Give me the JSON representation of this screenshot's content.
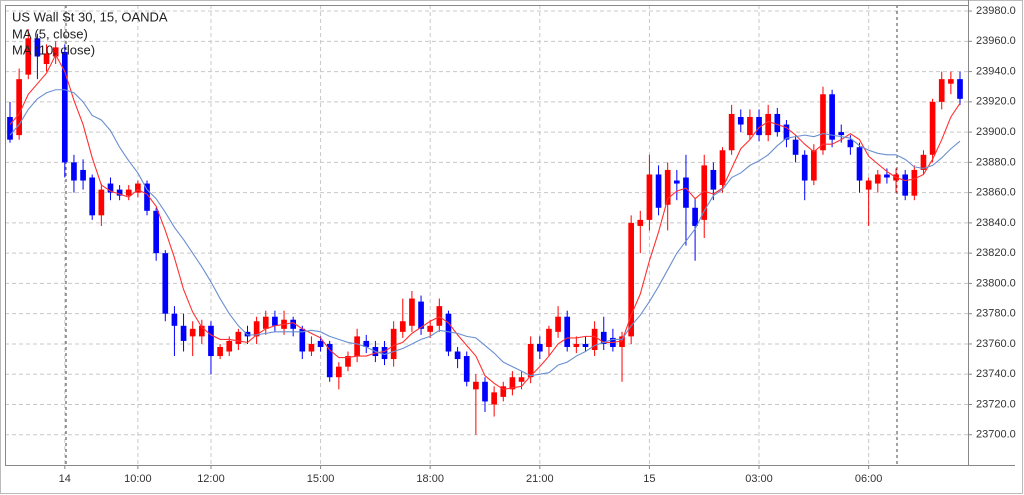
{
  "chart_data": {
    "type": "candlestick",
    "title": "US Wall St 30, 15, OANDA",
    "categories": [
      null,
      null,
      null,
      null,
      null,
      null,
      "14",
      null,
      null,
      null,
      null,
      null,
      null,
      null,
      "10:00",
      null,
      null,
      null,
      null,
      null,
      null,
      null,
      "12:00",
      null,
      null,
      null,
      null,
      null,
      null,
      null,
      null,
      null,
      null,
      null,
      "15:00",
      null,
      null,
      null,
      null,
      null,
      null,
      null,
      null,
      null,
      null,
      null,
      "18:00",
      null,
      null,
      null,
      null,
      null,
      null,
      null,
      null,
      null,
      null,
      null,
      "21:00",
      null,
      null,
      null,
      null,
      null,
      null,
      null,
      null,
      null,
      null,
      null,
      "15",
      null,
      null,
      null,
      null,
      null,
      null,
      null,
      null,
      null,
      null,
      null,
      "03:00",
      null,
      null,
      null,
      null,
      null,
      null,
      null,
      null,
      null,
      null,
      null,
      "06:00",
      null,
      null,
      null,
      null,
      null,
      null,
      null,
      null,
      null,
      null
    ],
    "open": [
      23910,
      23898,
      23938,
      23962,
      23945,
      23950,
      23953,
      23880,
      23875,
      23870,
      23845,
      23866,
      23862,
      23858,
      23860,
      23866,
      23848,
      23820,
      23780,
      23772,
      23765,
      23765,
      23772,
      23752,
      23755,
      23760,
      23768,
      23765,
      23770,
      23778,
      23770,
      23776,
      23770,
      23755,
      23762,
      23760,
      23738,
      23745,
      23752,
      23762,
      23758,
      23758,
      23750,
      23768,
      23772,
      23788,
      23768,
      23772,
      23780,
      23755,
      23752,
      23730,
      23735,
      23720,
      23725,
      23730,
      23735,
      23738,
      23760,
      23758,
      23768,
      23778,
      23758,
      23760,
      23756,
      23768,
      23764,
      23758,
      23765,
      23838,
      23842,
      23872,
      23852,
      23868,
      23870,
      23850,
      23842,
      23875,
      23865,
      23888,
      23910,
      23898,
      23910,
      23898,
      23912,
      23905,
      23895,
      23885,
      23868,
      23888,
      23925,
      23900,
      23895,
      23890,
      23862,
      23866,
      23872,
      23868,
      23872,
      23858,
      23875,
      23885,
      23920,
      23932,
      23935
    ],
    "high": [
      23920,
      23942,
      23968,
      23965,
      23958,
      23960,
      23958,
      23885,
      23882,
      23872,
      23866,
      23870,
      23865,
      23865,
      23868,
      23868,
      23850,
      23822,
      23785,
      23780,
      23775,
      23776,
      23775,
      23760,
      23765,
      23770,
      23772,
      23778,
      23782,
      23782,
      23782,
      23778,
      23772,
      23765,
      23765,
      23762,
      23748,
      23755,
      23770,
      23766,
      23762,
      23762,
      23775,
      23790,
      23795,
      23792,
      23776,
      23790,
      23782,
      23758,
      23755,
      23740,
      23738,
      23732,
      23735,
      23742,
      23742,
      23765,
      23765,
      23772,
      23785,
      23782,
      23765,
      23765,
      23775,
      23778,
      23770,
      23768,
      23845,
      23848,
      23885,
      23878,
      23880,
      23875,
      23885,
      23856,
      23885,
      23880,
      23890,
      23918,
      23915,
      23915,
      23915,
      23918,
      23916,
      23908,
      23898,
      23888,
      23892,
      23930,
      23928,
      23905,
      23898,
      23893,
      23870,
      23875,
      23876,
      23876,
      23875,
      23878,
      23888,
      23922,
      23940,
      23940,
      23940
    ],
    "low": [
      23893,
      23895,
      23935,
      23935,
      23940,
      23945,
      23870,
      23860,
      23862,
      23842,
      23838,
      23855,
      23855,
      23855,
      23857,
      23845,
      23815,
      23775,
      23752,
      23755,
      23752,
      23760,
      23740,
      23750,
      23752,
      23756,
      23760,
      23760,
      23766,
      23768,
      23766,
      23765,
      23750,
      23752,
      23755,
      23735,
      23730,
      23742,
      23748,
      23754,
      23748,
      23746,
      23745,
      23764,
      23768,
      23766,
      23764,
      23768,
      23752,
      23744,
      23732,
      23700,
      23715,
      23712,
      23722,
      23726,
      23730,
      23734,
      23750,
      23752,
      23764,
      23755,
      23754,
      23755,
      23752,
      23756,
      23755,
      23735,
      23760,
      23820,
      23835,
      23845,
      23835,
      23855,
      23825,
      23815,
      23830,
      23855,
      23860,
      23885,
      23900,
      23895,
      23894,
      23894,
      23897,
      23890,
      23880,
      23855,
      23865,
      23885,
      23890,
      23893,
      23885,
      23860,
      23838,
      23860,
      23866,
      23860,
      23855,
      23855,
      23872,
      23880,
      23915,
      23925,
      23918
    ],
    "close": [
      23895,
      23935,
      23962,
      23950,
      23952,
      23956,
      23880,
      23868,
      23868,
      23845,
      23862,
      23860,
      23858,
      23862,
      23866,
      23848,
      23820,
      23780,
      23772,
      23762,
      23770,
      23772,
      23752,
      23758,
      23762,
      23768,
      23765,
      23775,
      23778,
      23772,
      23776,
      23770,
      23755,
      23760,
      23758,
      23738,
      23745,
      23752,
      23765,
      23758,
      23752,
      23750,
      23770,
      23775,
      23790,
      23770,
      23772,
      23785,
      23755,
      23750,
      23735,
      23735,
      23722,
      23728,
      23732,
      23738,
      23738,
      23760,
      23755,
      23770,
      23778,
      23758,
      23760,
      23758,
      23770,
      23760,
      23758,
      23765,
      23840,
      23842,
      23872,
      23850,
      23875,
      23866,
      23850,
      23838,
      23878,
      23862,
      23888,
      23912,
      23905,
      23910,
      23898,
      23912,
      23900,
      23895,
      23885,
      23868,
      23888,
      23925,
      23895,
      23898,
      23890,
      23868,
      23868,
      23872,
      23870,
      23872,
      23858,
      23875,
      23885,
      23920,
      23935,
      23935,
      23922
    ],
    "up_color": "#ff0000",
    "down_color": "#0000ff",
    "series": [
      {
        "name": "MA (5, close)",
        "color": "#ff3030",
        "values": [
          23905,
          23912,
          23925,
          23932,
          23939,
          23951,
          23940,
          23921,
          23905,
          23883,
          23865,
          23861,
          23859,
          23857,
          23862,
          23859,
          23851,
          23835,
          23817,
          23796,
          23781,
          23771,
          23766,
          23763,
          23763,
          23762,
          23761,
          23766,
          23770,
          23772,
          23773,
          23774,
          23770,
          23767,
          23764,
          23756,
          23751,
          23751,
          23752,
          23752,
          23754,
          23755,
          23759,
          23761,
          23767,
          23771,
          23775,
          23778,
          23774,
          23766,
          23759,
          23752,
          23739,
          23734,
          23730,
          23731,
          23732,
          23739,
          23745,
          23752,
          23760,
          23764,
          23764,
          23765,
          23765,
          23761,
          23761,
          23762,
          23779,
          23793,
          23815,
          23834,
          23856,
          23861,
          23863,
          23856,
          23861,
          23859,
          23863,
          23876,
          23889,
          23895,
          23903,
          23907,
          23905,
          23903,
          23898,
          23892,
          23887,
          23892,
          23892,
          23895,
          23899,
          23895,
          23884,
          23879,
          23874,
          23870,
          23868,
          23869,
          23872,
          23882,
          23895,
          23910,
          23919
        ]
      },
      {
        "name": "MA (10, close)",
        "color": "#6a8fd0",
        "values": [
          23898,
          23905,
          23915,
          23922,
          23926,
          23928,
          23928,
          23926,
          23920,
          23911,
          23908,
          23901,
          23890,
          23881,
          23873,
          23862,
          23856,
          23847,
          23837,
          23829,
          23820,
          23811,
          23801,
          23790,
          23780,
          23772,
          23766,
          23766,
          23767,
          23768,
          23768,
          23768,
          23768,
          23769,
          23768,
          23765,
          23763,
          23761,
          23760,
          23758,
          23755,
          23753,
          23755,
          23757,
          23760,
          23763,
          23765,
          23769,
          23768,
          23767,
          23765,
          23764,
          23759,
          23754,
          23748,
          23745,
          23742,
          23739,
          23740,
          23741,
          23746,
          23748,
          23752,
          23755,
          23759,
          23761,
          23763,
          23763,
          23772,
          23779,
          23788,
          23798,
          23809,
          23820,
          23828,
          23836,
          23848,
          23858,
          23862,
          23870,
          23873,
          23878,
          23881,
          23885,
          23891,
          23896,
          23897,
          23898,
          23897,
          23899,
          23898,
          23897,
          23896,
          23891,
          23888,
          23886,
          23885,
          23885,
          23882,
          23877,
          23876,
          23878,
          23883,
          23889,
          23894
        ]
      }
    ],
    "ylim": [
      23680,
      23984
    ],
    "yticks": [
      {
        "value": 23700,
        "label": "23700.0"
      },
      {
        "value": 23720,
        "label": "23720.0"
      },
      {
        "value": 23740,
        "label": "23740.0"
      },
      {
        "value": 23760,
        "label": "23760.0"
      },
      {
        "value": 23780,
        "label": "23780.0"
      },
      {
        "value": 23800,
        "label": "23800.0"
      },
      {
        "value": 23820,
        "label": "23820.0"
      },
      {
        "value": 23840,
        "label": "23840.0"
      },
      {
        "value": 23860,
        "label": "23860.0"
      },
      {
        "value": 23880,
        "label": "23880.0"
      },
      {
        "value": 23900,
        "label": "23900.0"
      },
      {
        "value": 23920,
        "label": "23920.0"
      },
      {
        "value": 23940,
        "label": "23940.0"
      },
      {
        "value": 23960,
        "label": "23960.0"
      },
      {
        "value": 23980,
        "label": "23980.0"
      }
    ],
    "grid": true
  }
}
